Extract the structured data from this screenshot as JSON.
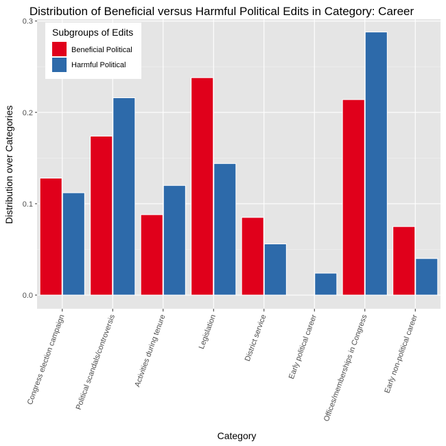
{
  "chart_data": {
    "type": "bar",
    "title": "Distribution of Beneficial versus Harmful Political Edits in Category: Career",
    "xlabel": "Category",
    "ylabel": "Distribution over Categories",
    "categories": [
      "Congress election campaign",
      "Political scandals/controversis",
      "Activities during tenure",
      "Legislation",
      "District service",
      "Early political career",
      "Offices/memberships in Congress",
      "Early non-political career"
    ],
    "series": [
      {
        "name": "Beneficial Political",
        "color": "#e0001b",
        "values": [
          0.128,
          0.174,
          0.088,
          0.238,
          0.085,
          0.0,
          0.214,
          0.075
        ]
      },
      {
        "name": "Harmful Political",
        "color": "#2d6aaa",
        "values": [
          0.112,
          0.216,
          0.12,
          0.144,
          0.056,
          0.024,
          0.288,
          0.04
        ]
      }
    ],
    "ylim": [
      -0.015,
      0.302
    ],
    "yticks": [
      0.0,
      0.1,
      0.2,
      0.3
    ],
    "ytick_labels": [
      "0.0",
      "0.1",
      "0.2",
      "0.3"
    ],
    "grid": true,
    "legend": {
      "title": "Subgroups of Edits",
      "position": "top-left"
    }
  }
}
